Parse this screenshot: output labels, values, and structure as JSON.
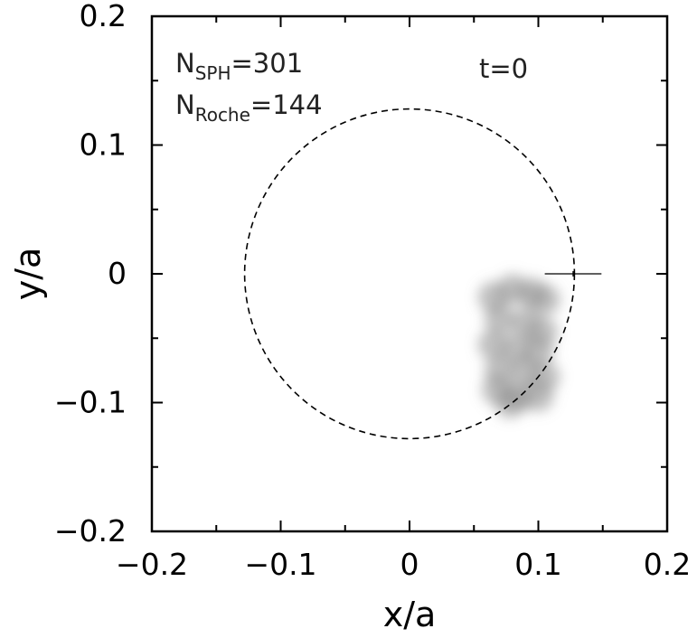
{
  "chart_data": {
    "type": "scatter",
    "xlabel": "x/a",
    "ylabel": "y/a",
    "xlim": [
      -0.2,
      0.2
    ],
    "ylim": [
      -0.2,
      0.2
    ],
    "xticks": [
      -0.2,
      -0.1,
      0,
      0.1,
      0.2
    ],
    "yticks": [
      -0.2,
      -0.1,
      0,
      0.1,
      0.2
    ],
    "xtick_labels": [
      "−0.2",
      "−0.1",
      "0",
      "0.1",
      "0.2"
    ],
    "ytick_labels": [
      "−0.2",
      "−0.1",
      "0",
      "0.1",
      "0.2"
    ],
    "grid": false,
    "annotations": {
      "n_sph": {
        "main": "N",
        "sub": "SPH",
        "value": "=301"
      },
      "n_roche": {
        "main": "N",
        "sub": "Roche",
        "value": "=144"
      },
      "time": "t=0"
    },
    "roche_circle": {
      "center": [
        0,
        0
      ],
      "radius": 0.128,
      "style": "dashed"
    },
    "marker_cross": {
      "x": 0.127,
      "y": 0.0,
      "half_width": 0.022
    },
    "particle_blobs": [
      {
        "x": 0.065,
        "y": -0.018
      },
      {
        "x": 0.08,
        "y": -0.012
      },
      {
        "x": 0.095,
        "y": -0.015
      },
      {
        "x": 0.105,
        "y": -0.02
      },
      {
        "x": 0.07,
        "y": -0.035
      },
      {
        "x": 0.09,
        "y": -0.038
      },
      {
        "x": 0.103,
        "y": -0.045
      },
      {
        "x": 0.065,
        "y": -0.055
      },
      {
        "x": 0.083,
        "y": -0.058
      },
      {
        "x": 0.1,
        "y": -0.06
      },
      {
        "x": 0.07,
        "y": -0.075
      },
      {
        "x": 0.09,
        "y": -0.075
      },
      {
        "x": 0.105,
        "y": -0.08
      },
      {
        "x": 0.068,
        "y": -0.09
      },
      {
        "x": 0.085,
        "y": -0.095
      },
      {
        "x": 0.1,
        "y": -0.095
      },
      {
        "x": 0.078,
        "y": -0.1
      }
    ],
    "colors": {
      "particles": "#8a8a8a",
      "lines": "#000000"
    }
  }
}
